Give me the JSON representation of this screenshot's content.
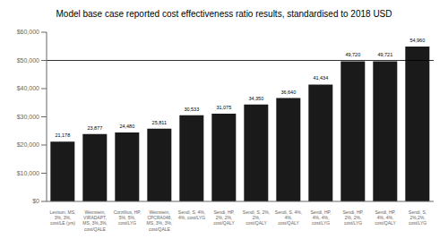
{
  "chart_data": {
    "type": "bar",
    "title": "Model base case reported cost effectiveness ratio results, standardised to 2018 USD",
    "categories": [
      "Levison, MS,\n3%, 3%,\ncost/LE (yrs)",
      "Weinstein,\nVIRADAPT,\nMS, 3%,3%,\ncost/QALE",
      "Corzillius, HP,\n5%, 5%,\ncost/LYG",
      "Weinstein,\nCPCRA048,\nMS, 3%, 3%,\ncost/QALE",
      "Sendi, S, 4%,\n4%, cost/LYG",
      "Sendi, HP,\n2%, 2%,\ncost/QALY",
      "Sendi, S, 2%,\n2%,\ncost/QALY",
      "Sendi, S, 4%,\n4%,\ncost/QALY",
      "Sendi, HP,\n4%, 4%,\ncost/LYG",
      "Sendi, HP,\n2%, 2%,\ncost/LYG",
      "Sendi, HP,\n4%, 4%,\ncost/QALY",
      "Sendi, S,\n2%,2%,\ncost/LYG"
    ],
    "values": [
      21178,
      23877,
      24480,
      25811,
      30533,
      31075,
      34350,
      36640,
      41434,
      49720,
      49721,
      54960
    ],
    "value_labels": [
      "21,178",
      "23,877",
      "24,480",
      "25,811",
      "30,533",
      "31,075",
      "34,350",
      "36,640",
      "41,434",
      "49,720",
      "49,721",
      "54,960"
    ],
    "data_labels": true,
    "color": "#1a1a1a",
    "reference_line": 50000,
    "ylim": [
      0,
      60000
    ],
    "yticks": [
      {
        "value": 0,
        "label": "$0"
      },
      {
        "value": 10000,
        "label": "$10,000"
      },
      {
        "value": 20000,
        "label": "$20,000"
      },
      {
        "value": 30000,
        "label": "$30,000"
      },
      {
        "value": 40000,
        "label": "$40,000"
      },
      {
        "value": 50000,
        "label": "$50,000"
      },
      {
        "value": 60000,
        "label": "$60,000"
      }
    ],
    "grid": false
  }
}
